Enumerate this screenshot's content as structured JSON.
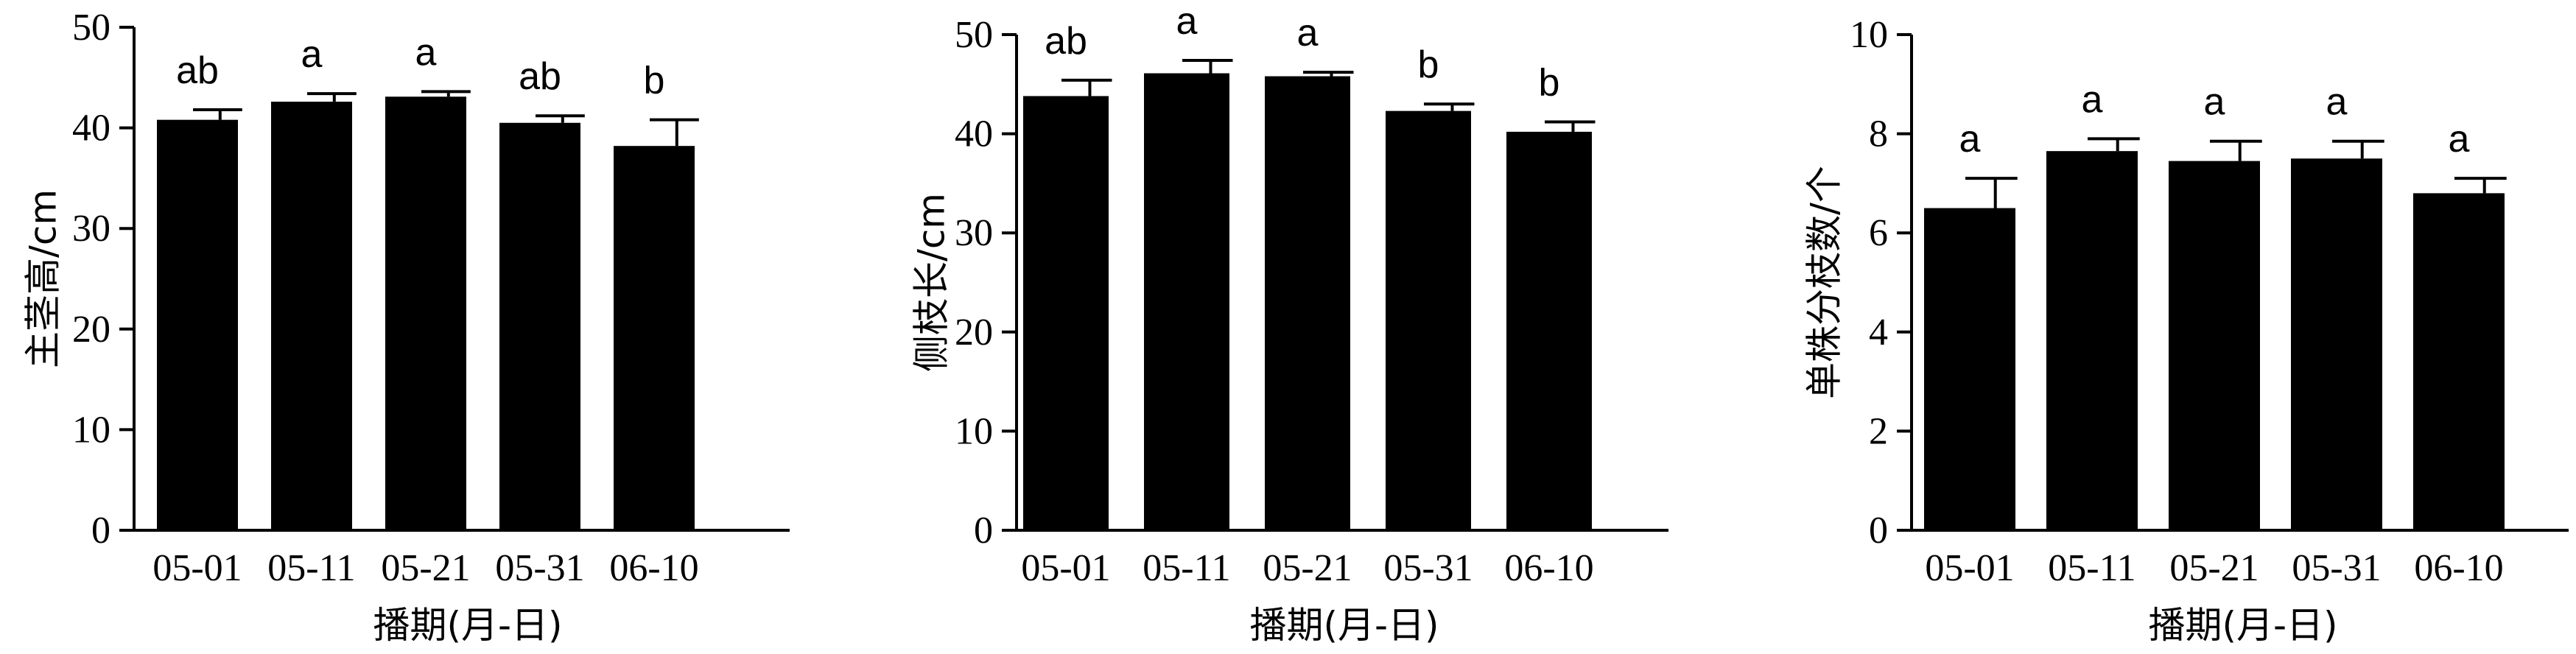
{
  "chart_data": [
    {
      "type": "bar",
      "categories": [
        "05-01",
        "05-11",
        "05-21",
        "05-31",
        "06-10"
      ],
      "values": [
        40.8,
        42.6,
        43.1,
        40.5,
        38.2
      ],
      "errors": [
        1.0,
        0.8,
        0.5,
        0.7,
        2.6
      ],
      "significance": [
        "ab",
        "a",
        "a",
        "ab",
        "b"
      ],
      "xlabel": "播期(月-日)",
      "ylabel": "主茎高/cm",
      "ylim": [
        0,
        50
      ],
      "yticks": [
        0,
        10,
        20,
        30,
        40,
        50
      ],
      "color": "#000000"
    },
    {
      "type": "bar",
      "categories": [
        "05-01",
        "05-11",
        "05-21",
        "05-31",
        "06-10"
      ],
      "values": [
        43.8,
        46.1,
        45.8,
        42.3,
        40.2
      ],
      "errors": [
        1.6,
        1.3,
        0.4,
        0.7,
        1.0
      ],
      "significance": [
        "ab",
        "a",
        "a",
        "b",
        "b"
      ],
      "xlabel": "播期(月-日)",
      "ylabel": "侧枝长/cm",
      "ylim": [
        0,
        50
      ],
      "yticks": [
        0,
        10,
        20,
        30,
        40,
        50
      ],
      "color": "#000000"
    },
    {
      "type": "bar",
      "categories": [
        "05-01",
        "05-11",
        "05-21",
        "05-31",
        "06-10"
      ],
      "values": [
        6.5,
        7.65,
        7.45,
        7.5,
        6.8
      ],
      "errors": [
        0.6,
        0.25,
        0.4,
        0.35,
        0.3
      ],
      "significance": [
        "a",
        "a",
        "a",
        "a",
        "a"
      ],
      "xlabel": "播期(月-日)",
      "ylabel": "单株分枝数/个",
      "ylim": [
        0,
        10
      ],
      "yticks": [
        0,
        2,
        4,
        6,
        8,
        10
      ],
      "color": "#000000"
    }
  ]
}
